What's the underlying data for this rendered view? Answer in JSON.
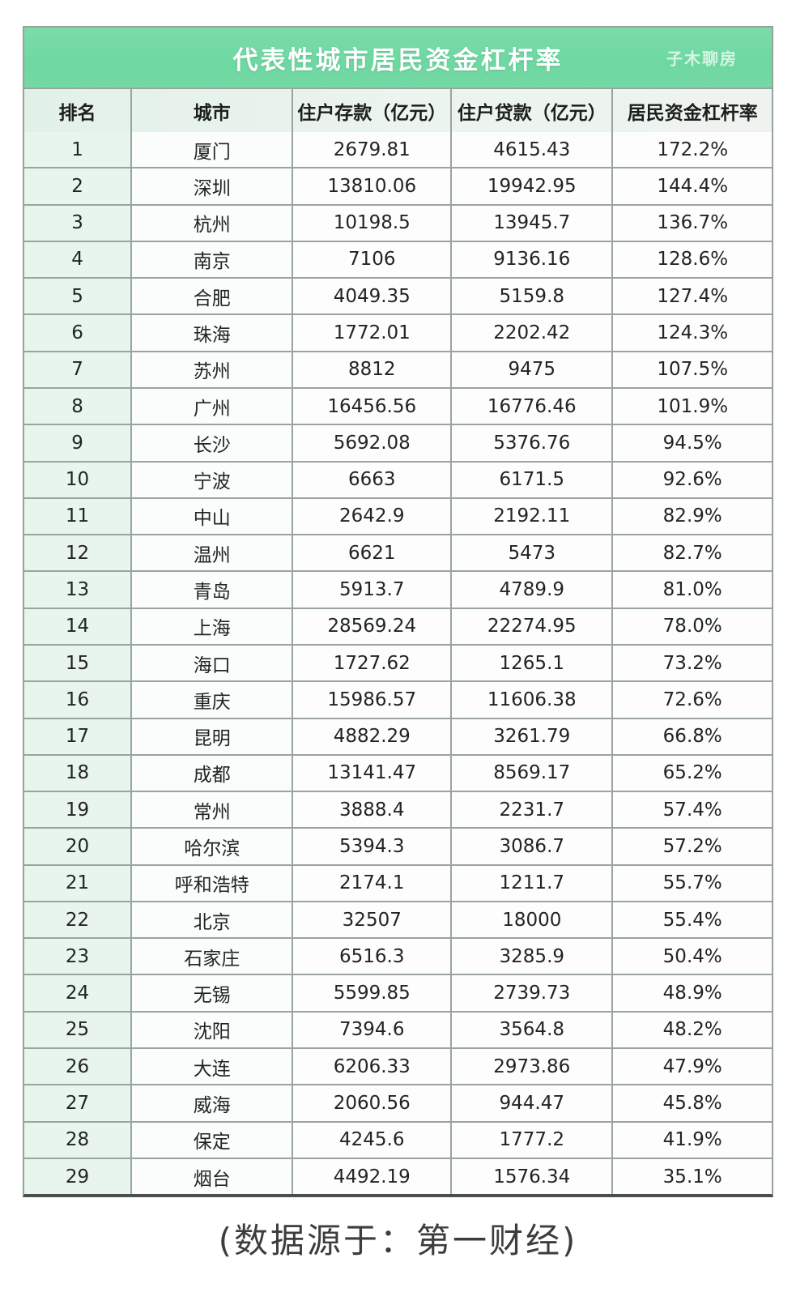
{
  "chart_data": {
    "type": "table",
    "title": "代表性城市居民资金杠杆率",
    "columns": [
      "排名",
      "城市",
      "住户存款（亿元）",
      "住户贷款（亿元）",
      "居民资金杠杆率"
    ],
    "rows": [
      [
        "1",
        "厦门",
        "2679.81",
        "4615.43",
        "172.2%"
      ],
      [
        "2",
        "深圳",
        "13810.06",
        "19942.95",
        "144.4%"
      ],
      [
        "3",
        "杭州",
        "10198.5",
        "13945.7",
        "136.7%"
      ],
      [
        "4",
        "南京",
        "7106",
        "9136.16",
        "128.6%"
      ],
      [
        "5",
        "合肥",
        "4049.35",
        "5159.8",
        "127.4%"
      ],
      [
        "6",
        "珠海",
        "1772.01",
        "2202.42",
        "124.3%"
      ],
      [
        "7",
        "苏州",
        "8812",
        "9475",
        "107.5%"
      ],
      [
        "8",
        "广州",
        "16456.56",
        "16776.46",
        "101.9%"
      ],
      [
        "9",
        "长沙",
        "5692.08",
        "5376.76",
        "94.5%"
      ],
      [
        "10",
        "宁波",
        "6663",
        "6171.5",
        "92.6%"
      ],
      [
        "11",
        "中山",
        "2642.9",
        "2192.11",
        "82.9%"
      ],
      [
        "12",
        "温州",
        "6621",
        "5473",
        "82.7%"
      ],
      [
        "13",
        "青岛",
        "5913.7",
        "4789.9",
        "81.0%"
      ],
      [
        "14",
        "上海",
        "28569.24",
        "22274.95",
        "78.0%"
      ],
      [
        "15",
        "海口",
        "1727.62",
        "1265.1",
        "73.2%"
      ],
      [
        "16",
        "重庆",
        "15986.57",
        "11606.38",
        "72.6%"
      ],
      [
        "17",
        "昆明",
        "4882.29",
        "3261.79",
        "66.8%"
      ],
      [
        "18",
        "成都",
        "13141.47",
        "8569.17",
        "65.2%"
      ],
      [
        "19",
        "常州",
        "3888.4",
        "2231.7",
        "57.4%"
      ],
      [
        "20",
        "哈尔滨",
        "5394.3",
        "3086.7",
        "57.2%"
      ],
      [
        "21",
        "呼和浩特",
        "2174.1",
        "1211.7",
        "55.7%"
      ],
      [
        "22",
        "北京",
        "32507",
        "18000",
        "55.4%"
      ],
      [
        "23",
        "石家庄",
        "6516.3",
        "3285.9",
        "50.4%"
      ],
      [
        "24",
        "无锡",
        "5599.85",
        "2739.73",
        "48.9%"
      ],
      [
        "25",
        "沈阳",
        "7394.6",
        "3564.8",
        "48.2%"
      ],
      [
        "26",
        "大连",
        "6206.33",
        "2973.86",
        "47.9%"
      ],
      [
        "27",
        "威海",
        "2060.56",
        "944.47",
        "45.8%"
      ],
      [
        "28",
        "保定",
        "4245.6",
        "1777.2",
        "41.9%"
      ],
      [
        "29",
        "烟台",
        "4492.19",
        "1576.34",
        "35.1%"
      ]
    ],
    "layout": {
      "grid": true,
      "header_position": "top"
    }
  },
  "header": {
    "watermark": "子木聊房"
  },
  "footer": {
    "source_note": "(数据源于：第一财经)"
  },
  "colors": {
    "title_bar_green": "#6ed8a1",
    "header_row_bg": "#e8f3ec",
    "rank_column_bg": "#e7f5ec",
    "border_gray": "#9aa49e",
    "title_text": "#ffffff",
    "body_text": "#222423"
  }
}
